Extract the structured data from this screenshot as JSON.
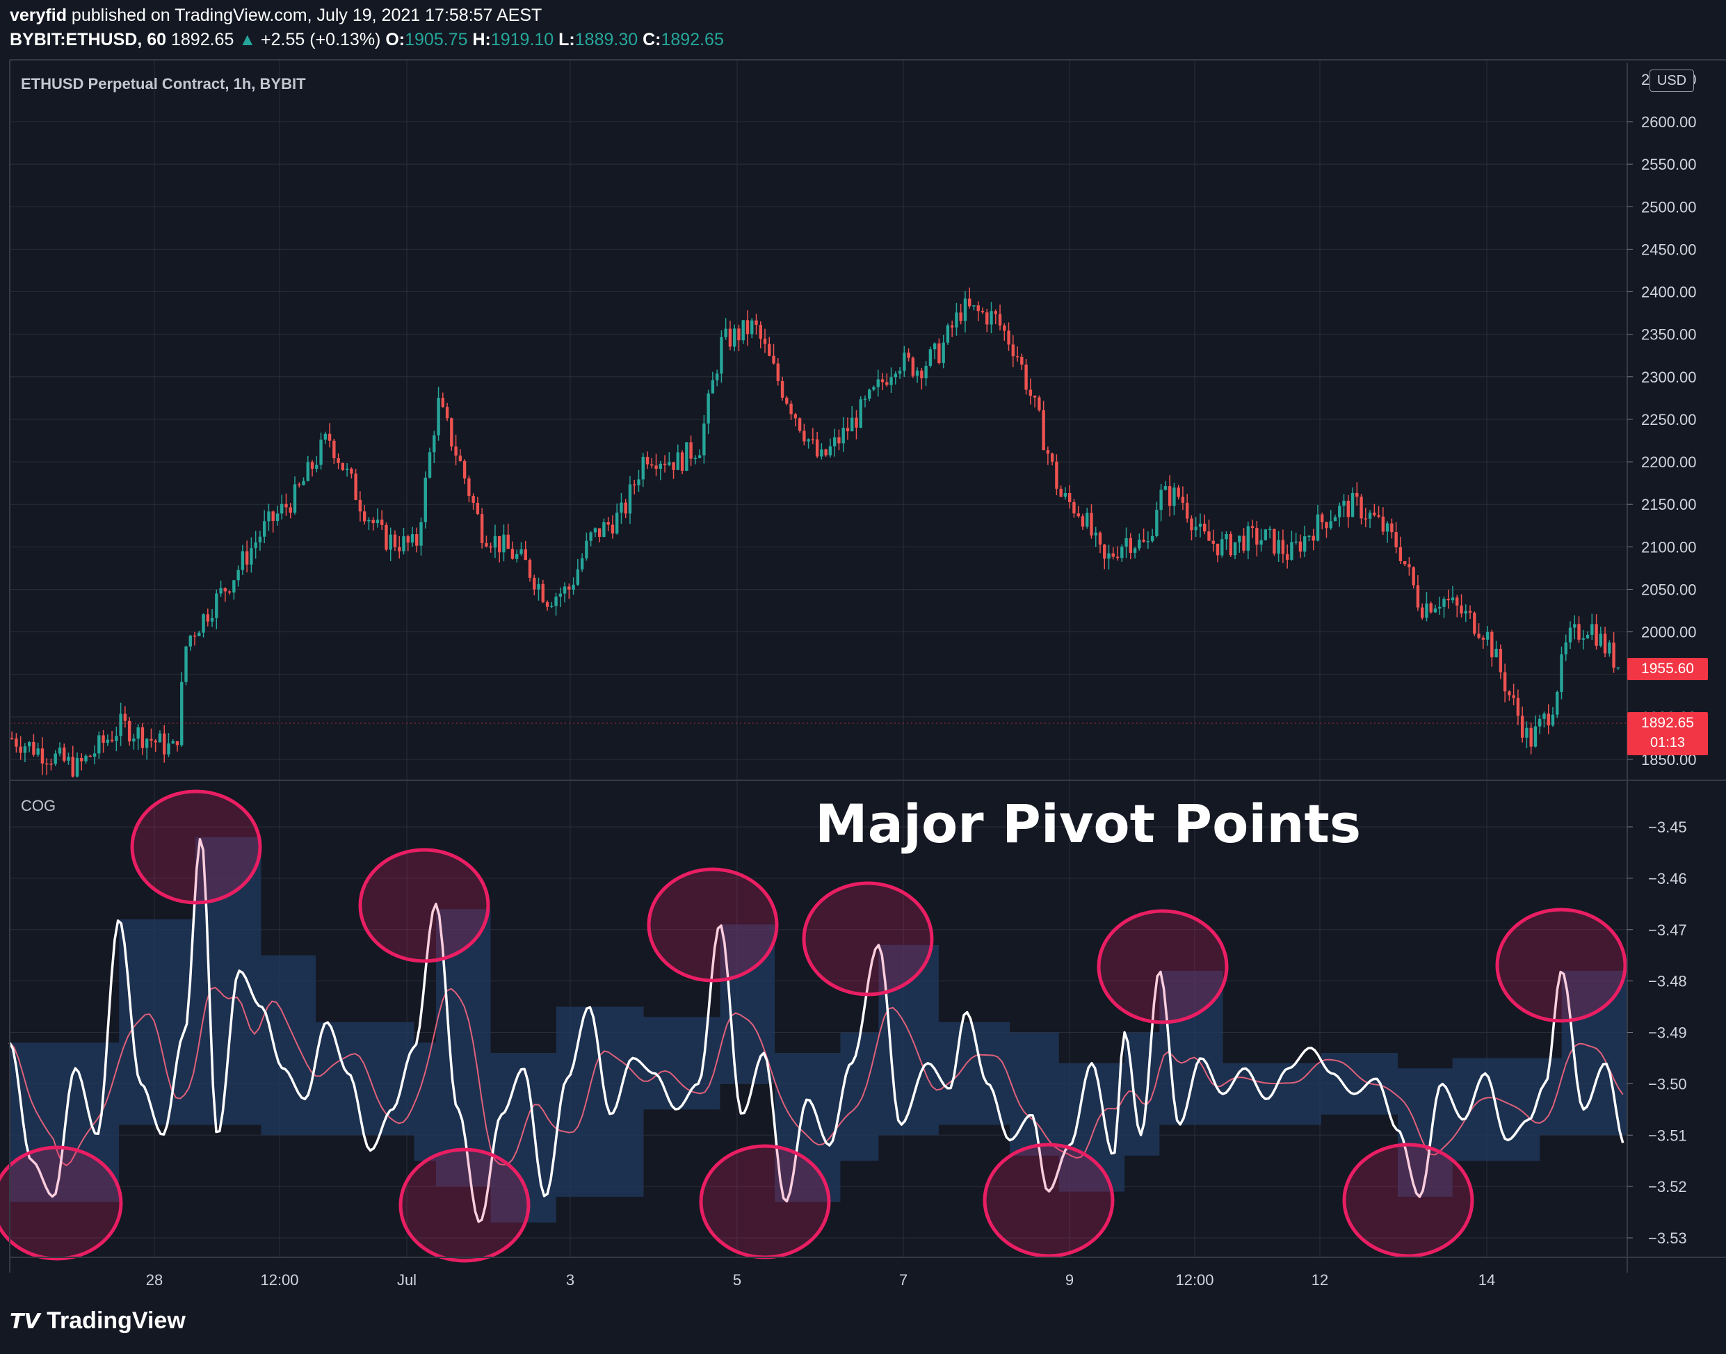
{
  "header": {
    "publisher": "veryfid",
    "published_text": " published on TradingView.com, July 19, 2021 17:58:57 AEST",
    "symbol": "BYBIT:ETHUSD, 60",
    "last": "1892.65",
    "change": "+2.55 (+0.13%)",
    "o_label": "O:",
    "o": "1905.75",
    "h_label": "H:",
    "h": "1919.10",
    "l_label": "L:",
    "l": "1889.30",
    "c_label": "C:",
    "c": "1892.65"
  },
  "price_pane": {
    "title": "ETHUSD Perpetual Contract, 1h, BYBIT",
    "currency": "USD",
    "top_tick_partial": "2650.00",
    "y_ticks": [
      "2600.00",
      "2550.00",
      "2500.00",
      "2450.00",
      "2400.00",
      "2350.00",
      "2300.00",
      "2250.00",
      "2200.00",
      "2150.00",
      "2100.00",
      "2050.00",
      "2000.00",
      "1950.00",
      "1900.00",
      "1850.00"
    ],
    "price_label_1": "1955.60",
    "price_label_2": "1892.65",
    "countdown": "01:13"
  },
  "cog_pane": {
    "title": "COG",
    "y_ticks": [
      "-3.45",
      "-3.46",
      "-3.47",
      "-3.48",
      "-3.49",
      "-3.50",
      "-3.51",
      "-3.52",
      "-3.53"
    ],
    "annotation": "Major Pivot Points"
  },
  "x_ticks": [
    "28",
    "12:00",
    "Jul",
    "3",
    "5",
    "7",
    "9",
    "12:00",
    "12",
    "14"
  ],
  "footer": {
    "logo_text": "TradingView"
  },
  "colors": {
    "background": "#141823",
    "grid": "#2a2e39",
    "up": "#26a69a",
    "down": "#ef5350",
    "cog_line": "#ffffff",
    "signal_line": "#e0607a",
    "band": "#1f3a5f",
    "circle": "#e91e63",
    "price_label": "#f23645"
  },
  "chart_data": [
    {
      "type": "candlestick",
      "title": "ETHUSD Perpetual Contract, 1h, BYBIT",
      "ylim": [
        1830,
        2650
      ],
      "x_range": [
        "Jun 26",
        "Jul 16"
      ],
      "close_path_anchors": [
        [
          0,
          1875
        ],
        [
          60,
          1840
        ],
        [
          100,
          1890
        ],
        [
          150,
          1860
        ],
        [
          160,
          1990
        ],
        [
          200,
          2060
        ],
        [
          230,
          2120
        ],
        [
          260,
          2160
        ],
        [
          290,
          2230
        ],
        [
          320,
          2150
        ],
        [
          340,
          2110
        ],
        [
          370,
          2100
        ],
        [
          390,
          2270
        ],
        [
          410,
          2200
        ],
        [
          430,
          2120
        ],
        [
          450,
          2100
        ],
        [
          470,
          2080
        ],
        [
          490,
          2040
        ],
        [
          510,
          2050
        ],
        [
          530,
          2110
        ],
        [
          560,
          2140
        ],
        [
          580,
          2210
        ],
        [
          610,
          2200
        ],
        [
          630,
          2220
        ],
        [
          650,
          2340
        ],
        [
          680,
          2360
        ],
        [
          700,
          2300
        ],
        [
          720,
          2250
        ],
        [
          740,
          2200
        ],
        [
          760,
          2230
        ],
        [
          790,
          2280
        ],
        [
          810,
          2320
        ],
        [
          830,
          2310
        ],
        [
          850,
          2330
        ],
        [
          870,
          2380
        ],
        [
          900,
          2370
        ],
        [
          920,
          2330
        ],
        [
          940,
          2250
        ],
        [
          960,
          2160
        ],
        [
          980,
          2140
        ],
        [
          1000,
          2080
        ],
        [
          1020,
          2110
        ],
        [
          1040,
          2100
        ],
        [
          1050,
          2160
        ],
        [
          1070,
          2160
        ],
        [
          1090,
          2110
        ],
        [
          1110,
          2100
        ],
        [
          1130,
          2110
        ],
        [
          1150,
          2110
        ],
        [
          1170,
          2090
        ],
        [
          1190,
          2120
        ],
        [
          1210,
          2140
        ],
        [
          1230,
          2150
        ],
        [
          1250,
          2130
        ],
        [
          1270,
          2100
        ],
        [
          1290,
          2030
        ],
        [
          1310,
          2040
        ],
        [
          1330,
          2020
        ],
        [
          1350,
          2000
        ],
        [
          1370,
          1930
        ],
        [
          1390,
          1870
        ],
        [
          1410,
          1910
        ],
        [
          1425,
          1990
        ],
        [
          1445,
          2010
        ],
        [
          1460,
          1980
        ],
        [
          1475,
          1955
        ]
      ]
    },
    {
      "type": "line",
      "title": "COG",
      "ylim": [
        -3.535,
        -3.445
      ],
      "series": [
        {
          "values": [
            [
              0,
              -3.492
            ],
            [
              20,
              -3.515
            ],
            [
              40,
              -3.522
            ],
            [
              60,
              -3.497
            ],
            [
              80,
              -3.51
            ],
            [
              100,
              -3.468
            ],
            [
              120,
              -3.5
            ],
            [
              140,
              -3.51
            ],
            [
              160,
              -3.49
            ],
            [
              175,
              -3.452
            ],
            [
              190,
              -3.51
            ],
            [
              210,
              -3.478
            ],
            [
              230,
              -3.485
            ],
            [
              250,
              -3.497
            ],
            [
              270,
              -3.503
            ],
            [
              290,
              -3.488
            ],
            [
              310,
              -3.498
            ],
            [
              330,
              -3.513
            ],
            [
              350,
              -3.505
            ],
            [
              370,
              -3.493
            ],
            [
              390,
              -3.465
            ],
            [
              410,
              -3.505
            ],
            [
              430,
              -3.527
            ],
            [
              450,
              -3.506
            ],
            [
              470,
              -3.497
            ],
            [
              490,
              -3.522
            ],
            [
              510,
              -3.499
            ],
            [
              530,
              -3.485
            ],
            [
              550,
              -3.506
            ],
            [
              570,
              -3.495
            ],
            [
              590,
              -3.498
            ],
            [
              610,
              -3.505
            ],
            [
              630,
              -3.5
            ],
            [
              650,
              -3.469
            ],
            [
              670,
              -3.506
            ],
            [
              690,
              -3.494
            ],
            [
              710,
              -3.523
            ],
            [
              730,
              -3.503
            ],
            [
              750,
              -3.512
            ],
            [
              770,
              -3.496
            ],
            [
              795,
              -3.473
            ],
            [
              815,
              -3.508
            ],
            [
              840,
              -3.496
            ],
            [
              860,
              -3.501
            ],
            [
              875,
              -3.486
            ],
            [
              895,
              -3.5
            ],
            [
              915,
              -3.511
            ],
            [
              935,
              -3.506
            ],
            [
              950,
              -3.521
            ],
            [
              970,
              -3.512
            ],
            [
              990,
              -3.496
            ],
            [
              1010,
              -3.514
            ],
            [
              1020,
              -3.49
            ],
            [
              1035,
              -3.51
            ],
            [
              1052,
              -3.478
            ],
            [
              1070,
              -3.508
            ],
            [
              1090,
              -3.495
            ],
            [
              1110,
              -3.502
            ],
            [
              1130,
              -3.497
            ],
            [
              1150,
              -3.503
            ],
            [
              1170,
              -3.497
            ],
            [
              1190,
              -3.493
            ],
            [
              1210,
              -3.498
            ],
            [
              1230,
              -3.502
            ],
            [
              1250,
              -3.499
            ],
            [
              1270,
              -3.509
            ],
            [
              1290,
              -3.522
            ],
            [
              1310,
              -3.5
            ],
            [
              1330,
              -3.507
            ],
            [
              1350,
              -3.498
            ],
            [
              1370,
              -3.511
            ],
            [
              1390,
              -3.507
            ],
            [
              1405,
              -3.5
            ],
            [
              1420,
              -3.478
            ],
            [
              1440,
              -3.505
            ],
            [
              1460,
              -3.496
            ],
            [
              1478,
              -3.512
            ]
          ]
        }
      ],
      "annotations": [
        "Major Pivot Points"
      ]
    }
  ]
}
